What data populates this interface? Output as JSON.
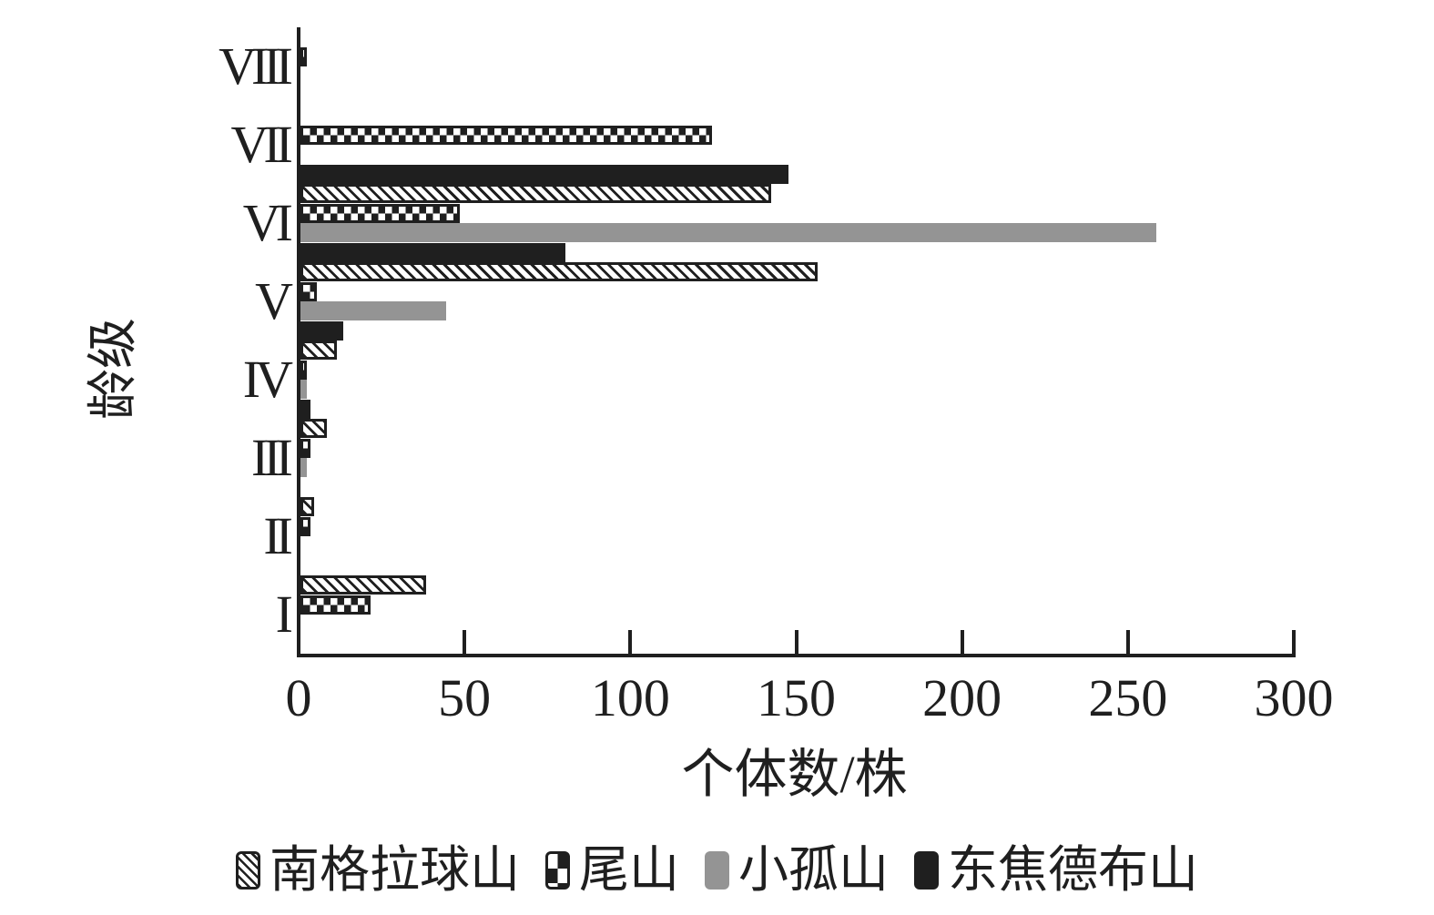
{
  "chart_data": {
    "type": "bar",
    "orientation": "horizontal",
    "title": "",
    "xlabel": "个体数/株",
    "ylabel": "龄级",
    "categories": [
      "VIII",
      "VII",
      "VI",
      "V",
      "IV",
      "III",
      "II",
      "I"
    ],
    "xlim": [
      0,
      300
    ],
    "xticks": [
      0,
      50,
      100,
      150,
      200,
      250,
      300
    ],
    "grid": false,
    "legend_position": "bottom",
    "series": [
      {
        "name": "南格拉球山",
        "pattern": "diagonal-hatch",
        "values": [
          0,
          0,
          142,
          156,
          11,
          8,
          4,
          38
        ]
      },
      {
        "name": "尾山",
        "pattern": "checkerboard",
        "values": [
          2,
          124,
          48,
          5,
          2,
          3,
          3,
          21
        ]
      },
      {
        "name": "小孤山",
        "pattern": "solid-gray",
        "color": "#949494",
        "values": [
          0,
          0,
          258,
          44,
          2,
          2,
          0,
          0
        ]
      },
      {
        "name": "东焦德布山",
        "pattern": "solid-black",
        "color": "#1f1f1f",
        "values": [
          0,
          147,
          80,
          13,
          3,
          0,
          0,
          0
        ]
      }
    ],
    "colors": {
      "pattern_ink": "#1f1f1f",
      "axis": "#1f1f1f",
      "background": "#ffffff",
      "gray": "#949494"
    }
  }
}
